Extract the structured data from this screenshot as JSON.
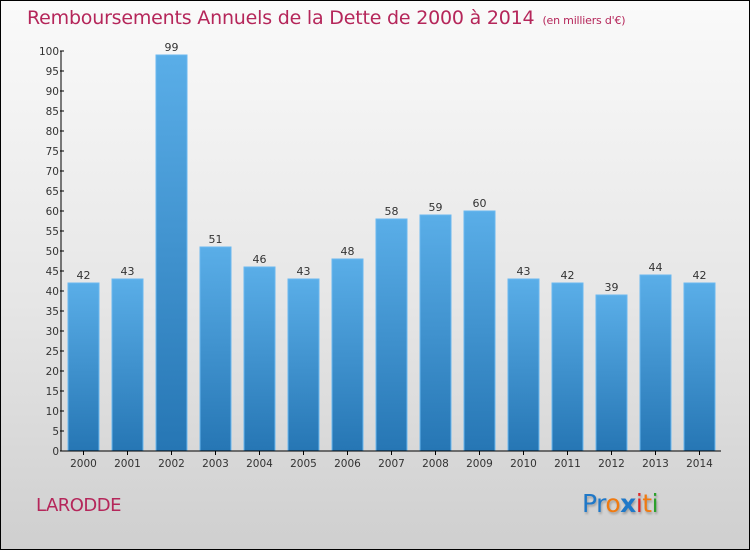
{
  "header": {
    "title": "Remboursements Annuels de la Dette de 2000 à 2014",
    "subtitle": "(en milliers d'€)"
  },
  "footer": {
    "commune": "LARODDE",
    "logo_letters": [
      {
        "char": "P",
        "color": "#1f78c8"
      },
      {
        "char": "r",
        "color": "#1f78c8"
      },
      {
        "char": "o",
        "color": "#f07a10"
      },
      {
        "char": "x",
        "color": "#1f78c8"
      },
      {
        "char": "i",
        "color": "#e02525"
      },
      {
        "char": "t",
        "color": "#f07a10"
      },
      {
        "char": "i",
        "color": "#2ca02c"
      }
    ]
  },
  "colors": {
    "bar_top": "#5aaee8",
    "bar_bottom": "#2676b4",
    "bar_edge": "#6ab8f0",
    "title": "#b5265a"
  },
  "chart_data": {
    "type": "bar",
    "title": "Remboursements Annuels de la Dette de 2000 à 2014",
    "subtitle": "(en milliers d'€)",
    "xlabel": "",
    "ylabel": "",
    "categories": [
      "2000",
      "2001",
      "2002",
      "2003",
      "2004",
      "2005",
      "2006",
      "2007",
      "2008",
      "2009",
      "2010",
      "2011",
      "2012",
      "2013",
      "2014"
    ],
    "values": [
      42,
      43,
      99,
      51,
      46,
      43,
      48,
      58,
      59,
      60,
      43,
      42,
      39,
      44,
      42
    ],
    "ylim": [
      0,
      100
    ],
    "yticks": [
      0,
      5,
      10,
      15,
      20,
      25,
      30,
      35,
      40,
      45,
      50,
      55,
      60,
      65,
      70,
      75,
      80,
      85,
      90,
      95,
      100
    ],
    "grid": false,
    "legend": "none",
    "data_labels": true
  }
}
